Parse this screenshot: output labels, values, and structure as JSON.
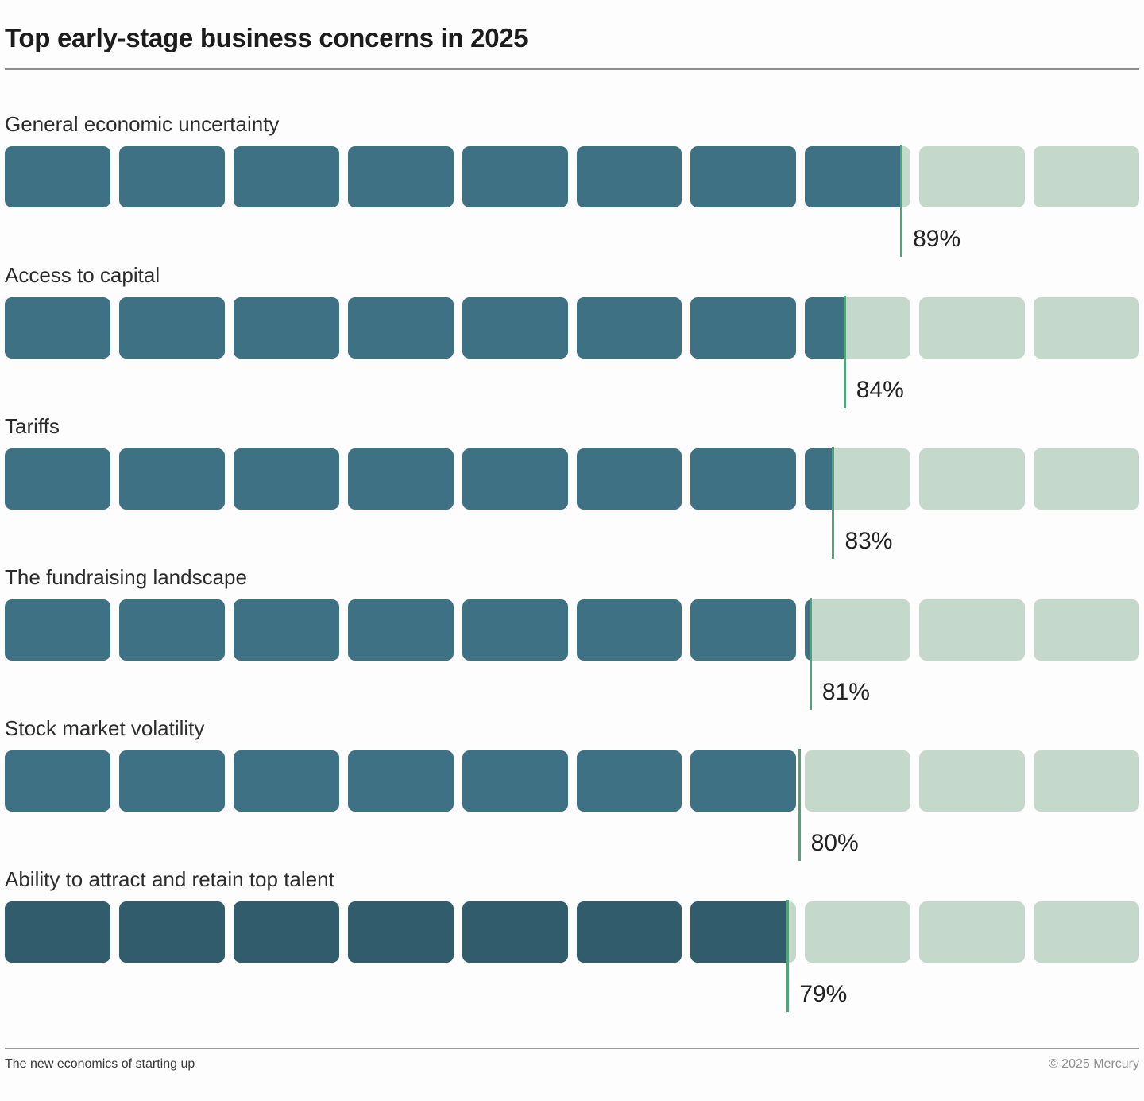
{
  "header": {
    "title": "Top early-stage business concerns in 2025"
  },
  "chart_data": {
    "type": "bar",
    "title": "Top early-stage business concerns in 2025",
    "orientation": "horizontal",
    "unit": "%",
    "categories": [
      "General economic uncertainty",
      "Access to capital",
      "Tariffs",
      "The fundraising landscape",
      "Stock market volatility",
      "Ability to attract and retain top talent"
    ],
    "values": [
      89,
      84,
      83,
      81,
      80,
      79
    ],
    "value_labels": [
      "89%",
      "84%",
      "83%",
      "81%",
      "80%",
      "79%"
    ],
    "blocks_per_row": 10,
    "colors": {
      "filled": "#3e7183",
      "filled_last_row": "#305c6c",
      "empty": "#c5d8cc",
      "marker": "#53a37a"
    },
    "layout": {
      "legend": "none",
      "grid": false,
      "value_label_position": "below-bar-right-of-marker",
      "marker_scale_offset_pct": 10,
      "block_gap_pct_of_track": 0.77
    }
  },
  "footer": {
    "left": "The new economics of starting up",
    "right": "© 2025 Mercury"
  }
}
